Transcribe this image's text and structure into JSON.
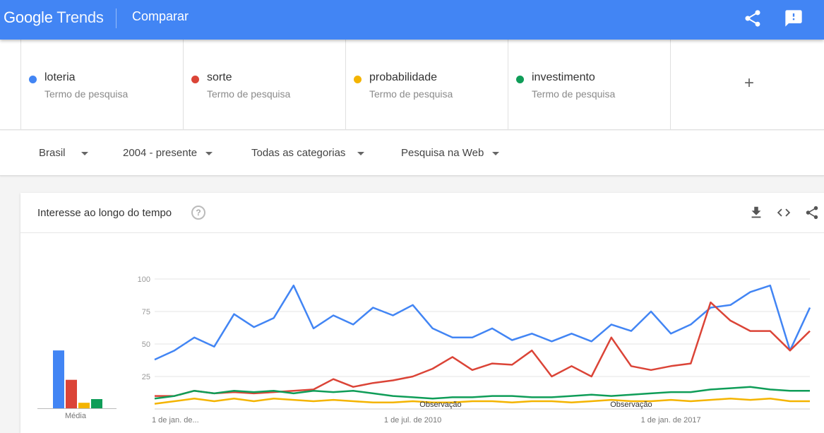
{
  "header": {
    "logo_google": "Google",
    "logo_trends": "Trends",
    "title": "Comparar",
    "share_icon": "share-icon",
    "feedback_icon": "feedback-icon"
  },
  "terms": [
    {
      "name": "loteria",
      "type": "Termo de pesquisa",
      "color": "#4285f4"
    },
    {
      "name": "sorte",
      "type": "Termo de pesquisa",
      "color": "#db4437"
    },
    {
      "name": "probabilidade",
      "type": "Termo de pesquisa",
      "color": "#f4b400"
    },
    {
      "name": "investimento",
      "type": "Termo de pesquisa",
      "color": "#0f9d58"
    }
  ],
  "add_term": "+",
  "filters": {
    "region": "Brasil",
    "period": "2004 - presente",
    "category": "Todas as categorias",
    "search_type": "Pesquisa na Web"
  },
  "card": {
    "title": "Interesse ao longo do tempo",
    "help": "?",
    "icons": [
      "download-icon",
      "embed-icon",
      "share-icon"
    ]
  },
  "chart_data": [
    {
      "type": "bar",
      "categories": [
        "loteria",
        "sorte",
        "probabilidade",
        "investimento"
      ],
      "values": [
        63,
        31,
        6,
        10
      ],
      "xlabel": "Média",
      "ylim": [
        0,
        100
      ],
      "colors": [
        "#4285f4",
        "#db4437",
        "#f4b400",
        "#0f9d58"
      ]
    },
    {
      "type": "line",
      "ylim": [
        0,
        100
      ],
      "yticks": [
        25,
        50,
        75,
        100
      ],
      "xticks": [
        {
          "label": "1 de jan. de...",
          "x": 2004.0
        },
        {
          "label": "1 de jul. de 2010",
          "x": 2010.5
        },
        {
          "label": "1 de jan. de 2017",
          "x": 2017.0
        }
      ],
      "annotations": [
        {
          "label": "Observação",
          "x": 2011.2
        },
        {
          "label": "Observação",
          "x": 2016.0
        }
      ],
      "x": [
        2004.0,
        2004.5,
        2005.0,
        2005.5,
        2006.0,
        2006.5,
        2007.0,
        2007.5,
        2008.0,
        2008.5,
        2009.0,
        2009.5,
        2010.0,
        2010.5,
        2011.0,
        2011.5,
        2012.0,
        2012.5,
        2013.0,
        2013.5,
        2014.0,
        2014.5,
        2015.0,
        2015.5,
        2016.0,
        2016.5,
        2017.0,
        2017.5,
        2018.0,
        2018.5,
        2019.0,
        2019.5,
        2020.0,
        2020.5
      ],
      "series": [
        {
          "name": "loteria",
          "color": "#4285f4",
          "values": [
            38,
            45,
            55,
            48,
            73,
            63,
            70,
            95,
            62,
            72,
            65,
            78,
            72,
            80,
            62,
            55,
            55,
            62,
            53,
            58,
            52,
            58,
            52,
            65,
            60,
            75,
            58,
            65,
            78,
            80,
            90,
            95,
            45,
            78
          ]
        },
        {
          "name": "sorte",
          "color": "#db4437",
          "values": [
            10,
            10,
            14,
            12,
            13,
            12,
            13,
            14,
            15,
            23,
            17,
            20,
            22,
            25,
            31,
            40,
            30,
            35,
            34,
            45,
            25,
            33,
            25,
            55,
            33,
            30,
            33,
            35,
            82,
            68,
            60,
            60,
            45,
            60
          ]
        },
        {
          "name": "probabilidade",
          "color": "#f4b400",
          "values": [
            4,
            6,
            8,
            6,
            8,
            6,
            8,
            7,
            6,
            7,
            6,
            5,
            5,
            6,
            5,
            5,
            6,
            6,
            5,
            6,
            6,
            5,
            6,
            7,
            6,
            6,
            7,
            6,
            7,
            8,
            7,
            8,
            6,
            6
          ]
        },
        {
          "name": "investimento",
          "color": "#0f9d58",
          "values": [
            8,
            10,
            14,
            12,
            14,
            13,
            14,
            12,
            14,
            13,
            14,
            12,
            10,
            9,
            8,
            9,
            9,
            10,
            10,
            9,
            9,
            10,
            11,
            10,
            11,
            12,
            13,
            13,
            15,
            16,
            17,
            15,
            14,
            14
          ]
        }
      ]
    }
  ]
}
